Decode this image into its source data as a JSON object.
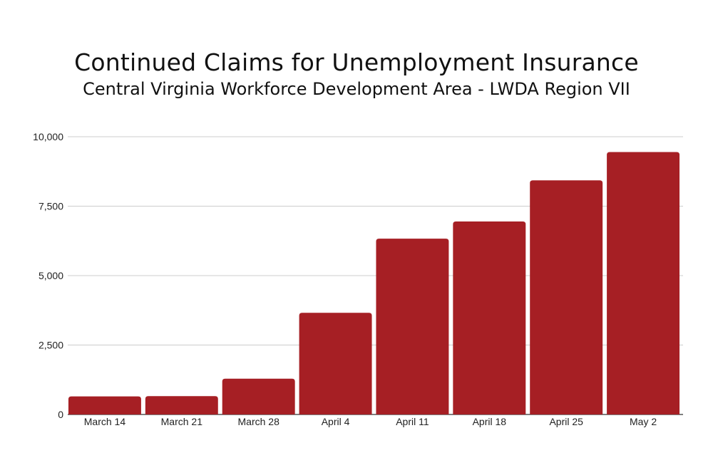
{
  "chart_data": {
    "type": "bar",
    "title": "Continued Claims for Unemployment Insurance",
    "subtitle": "Central Virginia Workforce Development Area - LWDA Region VII",
    "xlabel": "",
    "ylabel": "",
    "categories": [
      "March 14",
      "March 21",
      "March 28",
      "April 4",
      "April 11",
      "April 18",
      "April 25",
      "May 2"
    ],
    "values": [
      650,
      660,
      1290,
      3660,
      6330,
      6950,
      8430,
      9450
    ],
    "ylim": [
      0,
      10000
    ],
    "yticks": [
      0,
      2500,
      5000,
      7500,
      10000
    ],
    "ytick_labels": [
      "0",
      "2,500",
      "5,000",
      "7,500",
      "10,000"
    ],
    "grid": true,
    "legend": "none",
    "colors": {
      "bar": "#a61f24",
      "grid": "#cccccc",
      "axis": "#333333"
    }
  }
}
